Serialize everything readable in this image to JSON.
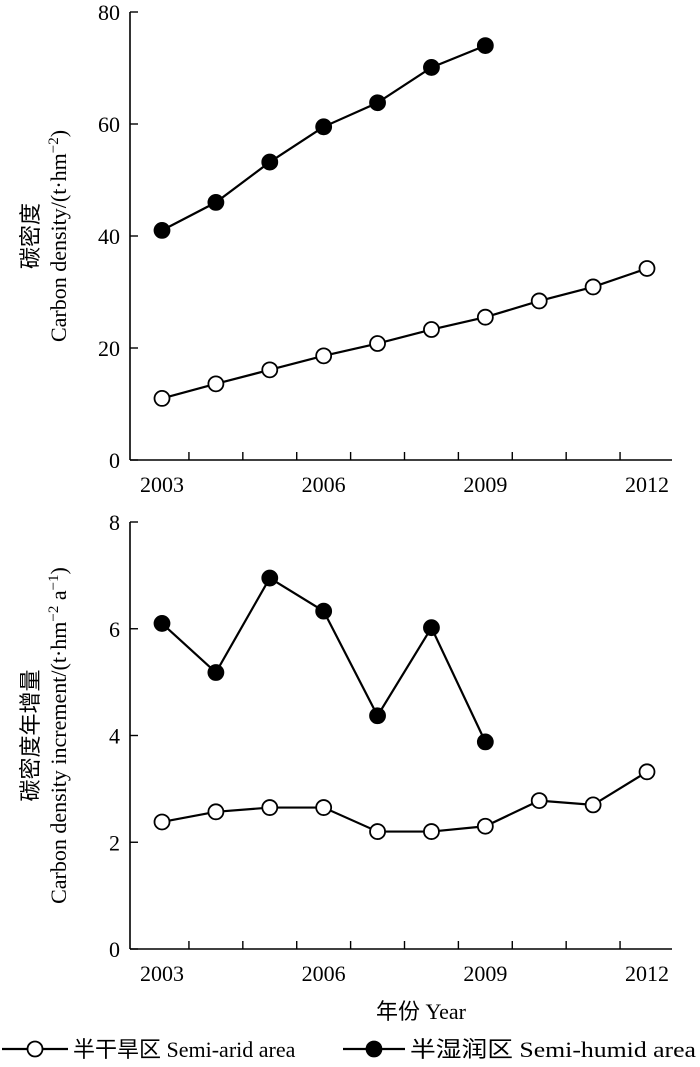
{
  "chart_data": [
    {
      "type": "line",
      "ylabel_cn": "碳密度",
      "ylabel_en": "Carbon density/(t·hm",
      "ylabel_sup": "−2",
      "ylabel_close": ")",
      "xlabel": "",
      "ylim": [
        0,
        80
      ],
      "yticks": [
        0,
        20,
        40,
        60,
        80
      ],
      "xticks": [
        2003,
        2006,
        2009,
        2012
      ],
      "series": [
        {
          "name": "半干旱区 Semi-arid area",
          "marker": "open",
          "x": [
            2003,
            2004,
            2005,
            2006,
            2007,
            2008,
            2009,
            2010,
            2011,
            2012
          ],
          "values": [
            11,
            13.6,
            16.1,
            18.6,
            20.8,
            23.3,
            25.5,
            28.4,
            30.9,
            34.2
          ]
        },
        {
          "name": "半湿润区 Semi-humid area",
          "marker": "filled",
          "x": [
            2003,
            2004,
            2005,
            2006,
            2007,
            2008,
            2009
          ],
          "values": [
            41,
            46,
            53.2,
            59.5,
            63.8,
            70.1,
            74
          ]
        }
      ]
    },
    {
      "type": "line",
      "ylabel_cn": "碳密度年增量",
      "ylabel_en": "Carbon density increment/(t·hm",
      "ylabel_sup": "−2",
      "ylabel_mid": " a",
      "ylabel_sup2": "−1",
      "ylabel_close": ")",
      "xlabel": "年份 Year",
      "ylim": [
        0,
        8
      ],
      "yticks": [
        0,
        2,
        4,
        6,
        8
      ],
      "xticks": [
        2003,
        2006,
        2009,
        2012
      ],
      "series": [
        {
          "name": "半干旱区 Semi-arid area",
          "marker": "open",
          "x": [
            2003,
            2004,
            2005,
            2006,
            2007,
            2008,
            2009,
            2010,
            2011,
            2012
          ],
          "values": [
            2.38,
            2.57,
            2.65,
            2.65,
            2.2,
            2.2,
            2.3,
            2.78,
            2.7,
            3.32
          ]
        },
        {
          "name": "半湿润区 Semi-humid area",
          "marker": "filled",
          "x": [
            2003,
            2004,
            2005,
            2006,
            2007,
            2008,
            2009
          ],
          "values": [
            6.1,
            5.18,
            6.95,
            6.33,
            4.37,
            6.02,
            3.88
          ]
        }
      ]
    }
  ],
  "legend": {
    "items": [
      {
        "label": "半干旱区 Semi-arid area",
        "marker": "open"
      },
      {
        "label": "半湿润区 Semi-humid area",
        "marker": "filled"
      }
    ]
  }
}
